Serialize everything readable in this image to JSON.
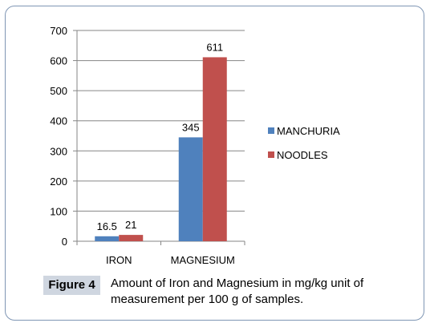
{
  "chart_data": {
    "type": "bar",
    "categories": [
      "IRON",
      "MAGNESIUM"
    ],
    "series": [
      {
        "name": "MANCHURIA",
        "values": [
          16.5,
          345
        ],
        "color": "#4f81bd"
      },
      {
        "name": "NOODLES",
        "values": [
          21,
          611
        ],
        "color": "#c0504d"
      }
    ],
    "data_labels": [
      [
        "16.5",
        "345"
      ],
      [
        "21",
        "611"
      ]
    ],
    "yticks": [
      0,
      100,
      200,
      300,
      400,
      500,
      600,
      700
    ],
    "ylim": [
      0,
      700
    ],
    "grid": true,
    "legend_position": "right"
  },
  "caption": {
    "label": "Figure 4",
    "text": "Amount of Iron and Magnesium in mg/kg unit of measurement per 100 g of samples."
  }
}
